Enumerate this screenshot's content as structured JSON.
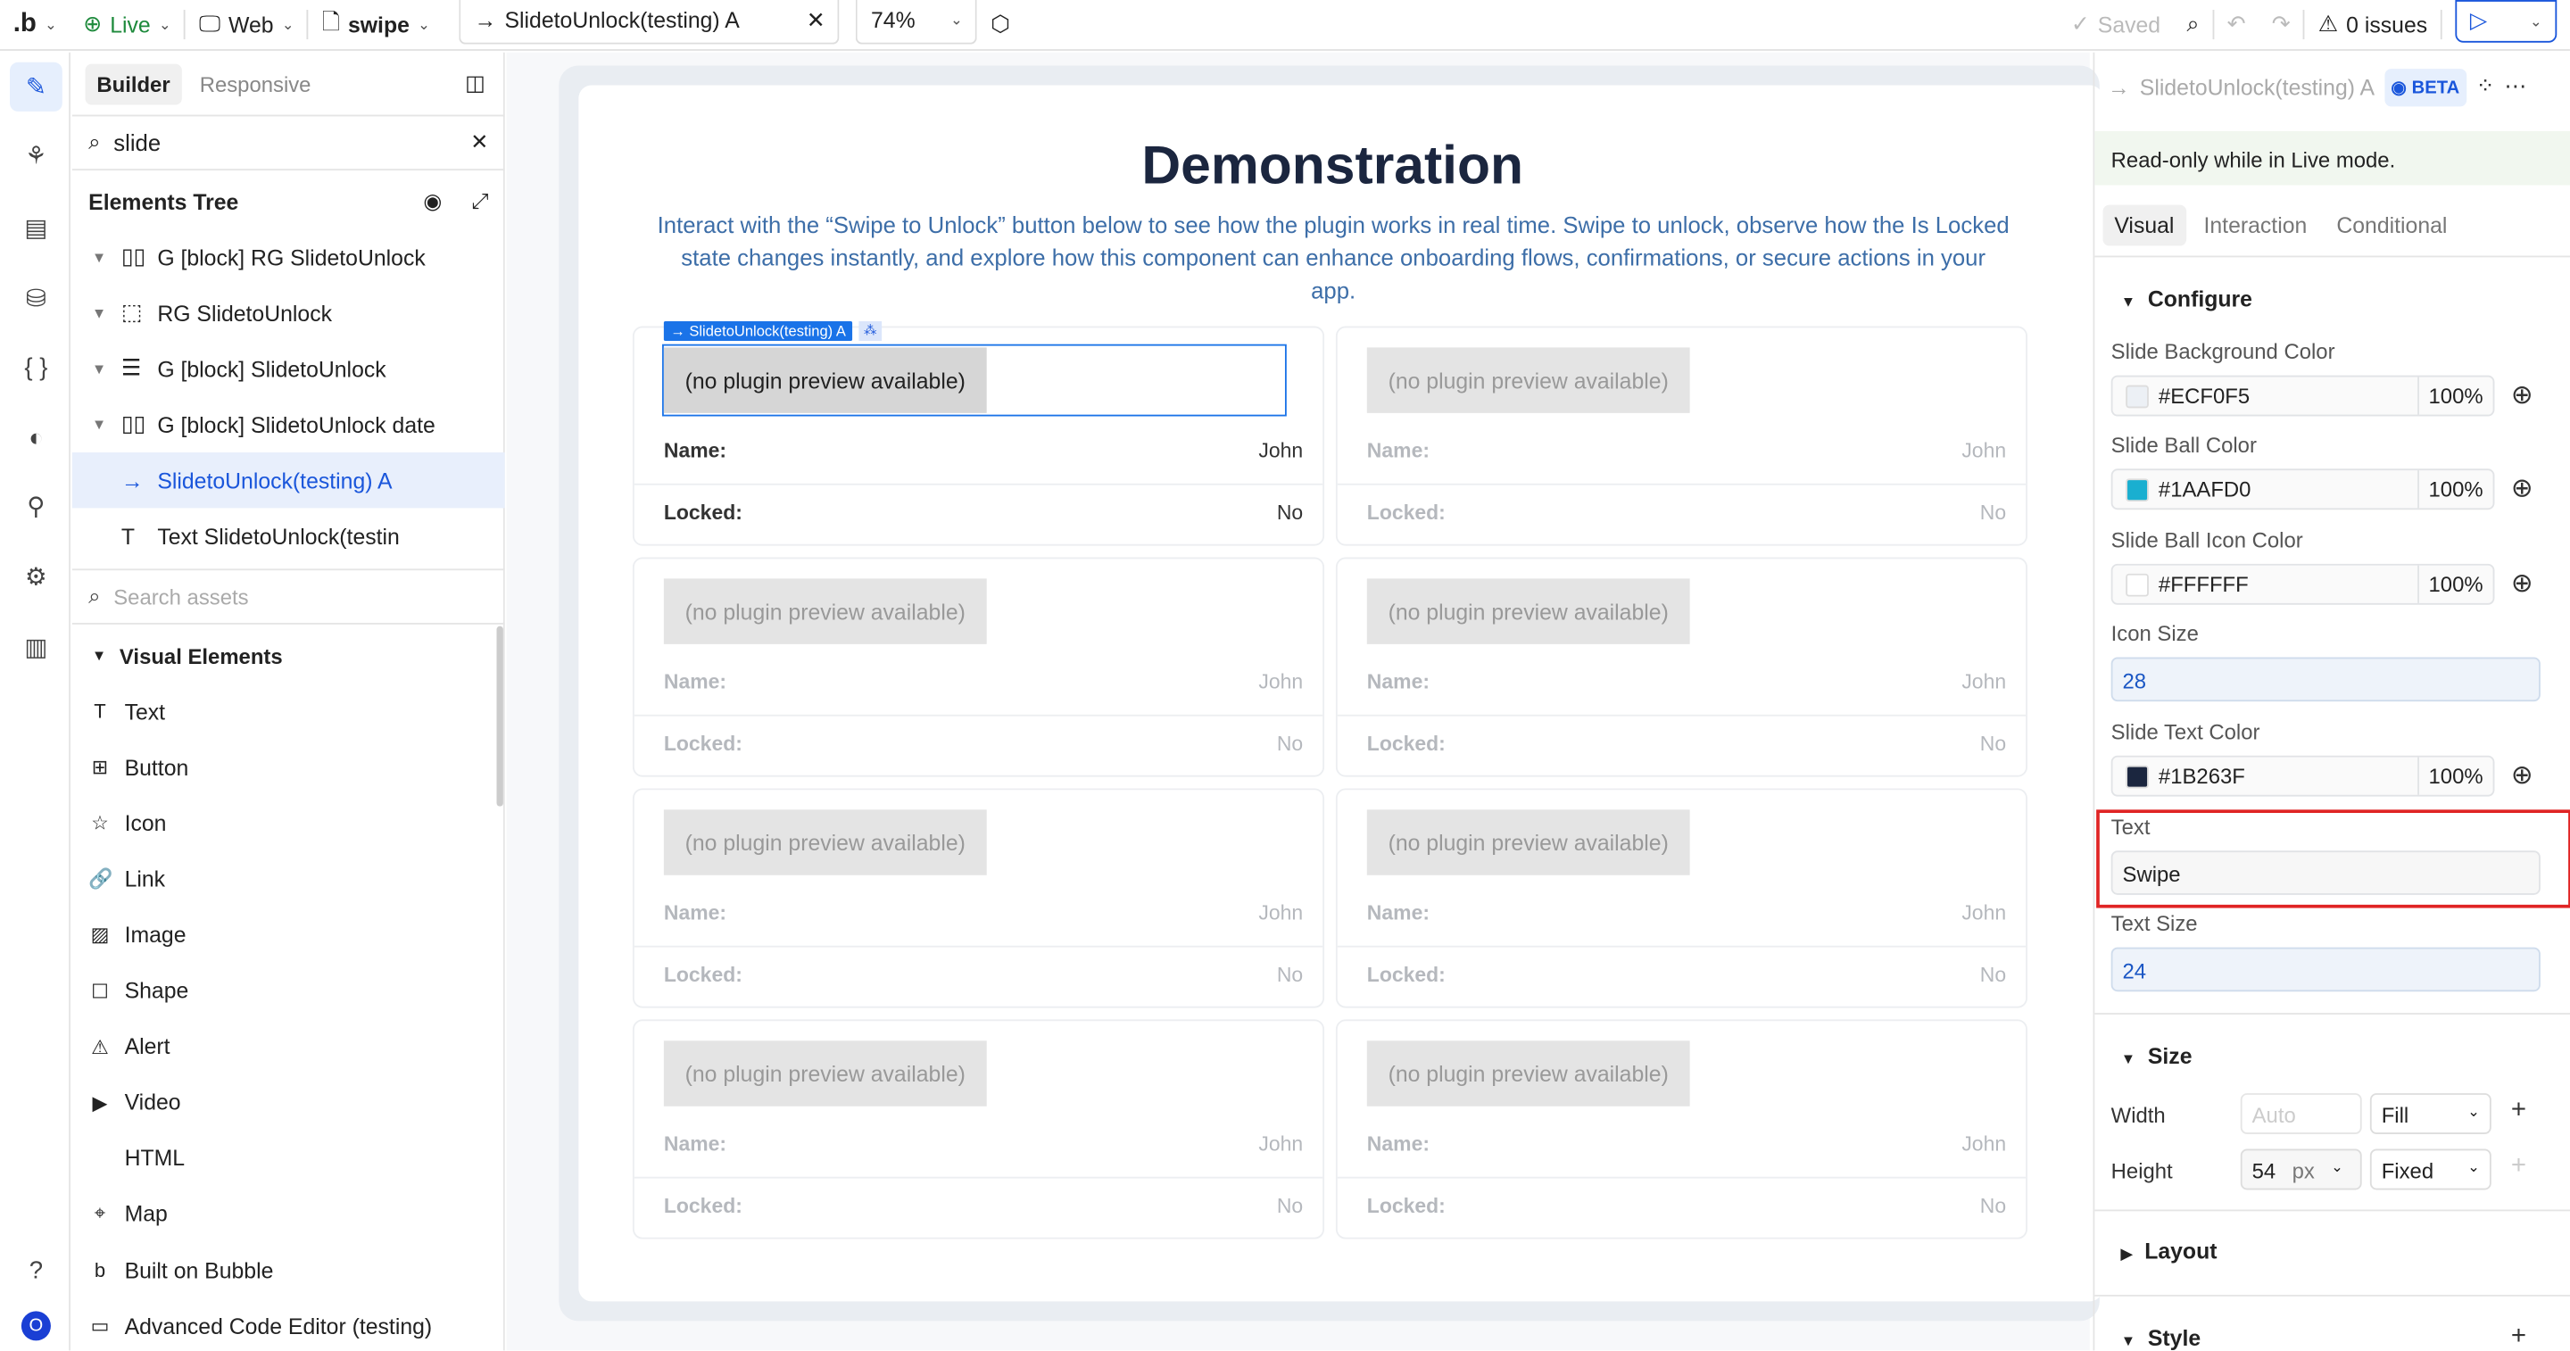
{
  "topbar": {
    "logo": ".b",
    "live": "Live",
    "device": "Web",
    "page": "swipe",
    "element": "SlidetoUnlock(testing) A",
    "zoom": "74%",
    "saved": "Saved",
    "issues": "0 issues"
  },
  "left": {
    "tabs": [
      "Builder",
      "Responsive"
    ],
    "search_value": "slide",
    "tree_title": "Elements Tree",
    "tree": [
      {
        "label": "G [block] RG SlidetoUnlock",
        "icon": "group-columns-icon"
      },
      {
        "label": "RG SlidetoUnlock",
        "icon": "repeating-group-icon"
      },
      {
        "label": "G [block] SlidetoUnlock",
        "icon": "group-rows-icon"
      },
      {
        "label": "G [block] SlidetoUnlock date",
        "icon": "group-columns-icon"
      },
      {
        "label": "SlidetoUnlock(testing) A",
        "icon": "arrow-right-icon"
      },
      {
        "label": "Text SlidetoUnlock(testin",
        "icon": "text-icon"
      }
    ],
    "assets_placeholder": "Search assets",
    "visual_title": "Visual Elements",
    "visual": [
      {
        "label": "Text",
        "glyph": "T"
      },
      {
        "label": "Button",
        "glyph": "⊞"
      },
      {
        "label": "Icon",
        "glyph": "☆"
      },
      {
        "label": "Link",
        "glyph": "🔗"
      },
      {
        "label": "Image",
        "glyph": "▨"
      },
      {
        "label": "Shape",
        "glyph": "☐"
      },
      {
        "label": "Alert",
        "glyph": "⚠"
      },
      {
        "label": "Video",
        "glyph": "▶"
      },
      {
        "label": "HTML",
        "glyph": "</>"
      },
      {
        "label": "Map",
        "glyph": "⌖"
      },
      {
        "label": "Built on Bubble",
        "glyph": "b"
      },
      {
        "label": "Advanced Code Editor (testing)",
        "glyph": "▭"
      }
    ]
  },
  "canvas": {
    "title": "Demonstration",
    "desc": "Interact with the “Swipe to Unlock” button below to see how the plugin works in real time. Swipe to unlock, observe how the Is Locked state changes instantly, and explore how this component can enhance onboarding flows, confirmations, or secure actions in your app.",
    "selected_tag": "SlidetoUnlock(testing) A",
    "preview": "(no plugin preview available)",
    "name_label": "Name:",
    "name_value": "John",
    "locked_label": "Locked:",
    "locked_value": "No"
  },
  "right": {
    "title": "SlidetoUnlock(testing) A",
    "beta": "BETA",
    "readonly": "Read-only while in Live mode.",
    "tabs": [
      "Visual",
      "Interaction",
      "Conditional"
    ],
    "configure": "Configure",
    "fields": {
      "bg_label": "Slide Background Color",
      "bg": "#ECF0F5",
      "bg_pct": "100%",
      "ball_label": "Slide Ball Color",
      "ball": "#1AAFD0",
      "ball_pct": "100%",
      "icon_label": "Slide Ball Icon Color",
      "icon": "#FFFFFF",
      "icon_pct": "100%",
      "iconsize_label": "Icon Size",
      "iconsize": "28",
      "textcolor_label": "Slide Text Color",
      "textcolor": "#1B263F",
      "textcolor_pct": "100%",
      "text_label": "Text",
      "text": "Swipe",
      "textsize_label": "Text Size",
      "textsize": "24"
    },
    "size": "Size",
    "width_label": "Width",
    "width_placeholder": "Auto",
    "width_mode": "Fill",
    "height_label": "Height",
    "height": "54",
    "height_unit": "px",
    "height_mode": "Fixed",
    "layout": "Layout",
    "style": "Style"
  },
  "colors": {
    "accent": "#1a56db",
    "live": "#1e8a3c",
    "highlight": "#e02424"
  }
}
